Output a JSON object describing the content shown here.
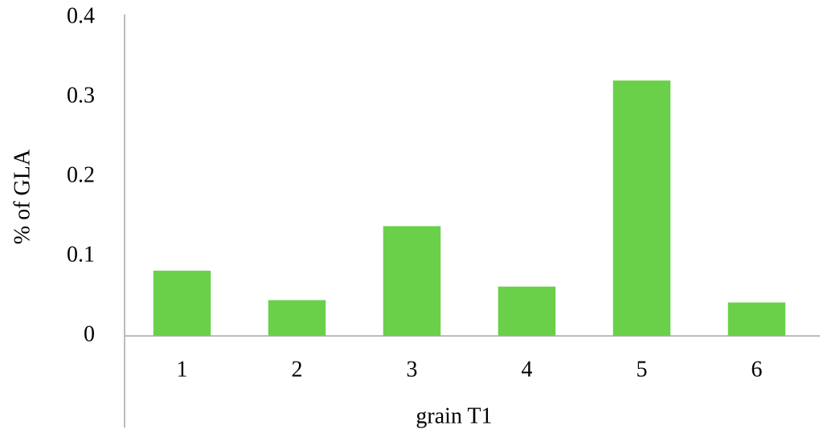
{
  "chart_data": {
    "type": "bar",
    "x_label": "grain T1",
    "y_label": "% of GLA",
    "categories": [
      "1",
      "2",
      "3",
      "4",
      "5",
      "6"
    ],
    "values": [
      0.082,
      0.045,
      0.138,
      0.062,
      0.321,
      0.042
    ],
    "color": "#6ad04a",
    "ylim": [
      0,
      0.4
    ],
    "yticks": [
      0,
      0.1,
      0.2,
      0.3,
      0.4
    ],
    "grid": false
  }
}
